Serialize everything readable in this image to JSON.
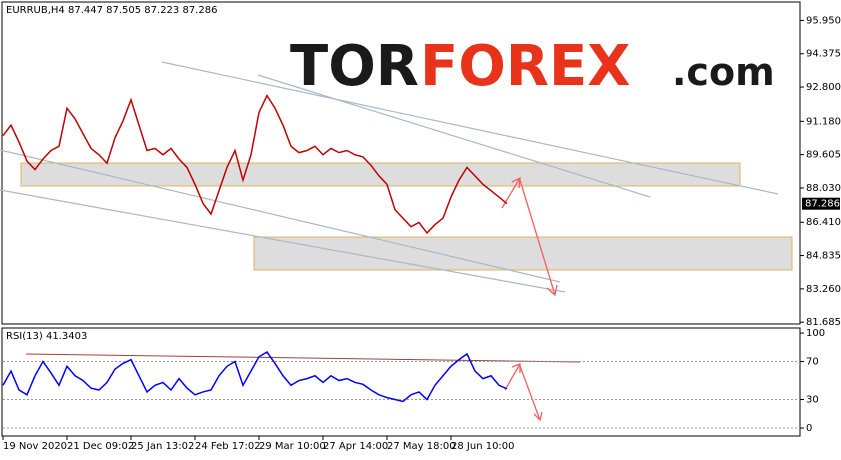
{
  "chart_data": [
    {
      "type": "line",
      "title": "EURRUB,H4  87.447 87.505 87.223 87.286",
      "categories": [
        "19 Nov 2020",
        null,
        null,
        null,
        null,
        null,
        null,
        null,
        "21 Dec 09:02",
        null,
        null,
        null,
        null,
        null,
        null,
        null,
        "25 Jan 13:02",
        null,
        null,
        null,
        null,
        null,
        null,
        null,
        "24 Feb 17:02",
        null,
        null,
        null,
        null,
        null,
        null,
        null,
        "29 Mar 10:00",
        null,
        null,
        null,
        null,
        null,
        null,
        null,
        "27 Apr 14:00",
        null,
        null,
        null,
        null,
        null,
        null,
        null,
        "27 May 18:00",
        null,
        null,
        null,
        null,
        null,
        null,
        null,
        "28 Jun 10:00",
        null,
        null,
        null,
        null,
        null,
        null,
        null
      ],
      "series": [
        {
          "color": "#c00000",
          "values": [
            90.5,
            91.0,
            90.2,
            89.3,
            88.9,
            89.4,
            89.8,
            90.0,
            91.8,
            91.3,
            90.6,
            89.9,
            89.6,
            89.2,
            90.4,
            91.2,
            92.2,
            91.0,
            89.8,
            89.9,
            89.6,
            89.9,
            89.4,
            89.0,
            88.2,
            87.3,
            86.8,
            87.9,
            89.0,
            89.8,
            88.4,
            89.6,
            91.6,
            92.4,
            91.8,
            91.0,
            90.0,
            89.7,
            89.8,
            90.0,
            89.6,
            89.9,
            89.7,
            89.8,
            89.6,
            89.5,
            89.1,
            88.6,
            88.2,
            87.0,
            86.6,
            86.2,
            86.4,
            85.9,
            86.3,
            86.6,
            87.6,
            88.4,
            89.0,
            88.6,
            88.2,
            87.9,
            87.6,
            87.286
          ]
        }
      ],
      "current_price": 87.286,
      "ylim": [
        81.6,
        96.82
      ],
      "yticks": [
        {
          "value": 95.95,
          "label": "95.950"
        },
        {
          "value": 94.375,
          "label": "94.375"
        },
        {
          "value": 92.8,
          "label": "92.800"
        },
        {
          "value": 91.18,
          "label": "91.180"
        },
        {
          "value": 89.605,
          "label": "89.605"
        },
        {
          "value": 88.03,
          "label": "88.030"
        },
        {
          "value": 86.41,
          "label": "86.410"
        },
        {
          "value": 84.835,
          "label": "84.835"
        },
        {
          "value": 83.26,
          "label": "83.260"
        },
        {
          "value": 81.685,
          "label": "81.685"
        }
      ],
      "grid": false
    },
    {
      "type": "line",
      "title": "RSI(13) 41.3403",
      "series": [
        {
          "color": "#0000ff",
          "values": [
            45,
            60,
            40,
            35,
            55,
            70,
            58,
            45,
            65,
            55,
            50,
            42,
            40,
            48,
            62,
            68,
            72,
            55,
            38,
            45,
            48,
            40,
            52,
            42,
            35,
            38,
            40,
            55,
            65,
            70,
            45,
            60,
            75,
            80,
            68,
            55,
            45,
            50,
            52,
            55,
            48,
            55,
            50,
            52,
            48,
            46,
            40,
            35,
            32,
            30,
            28,
            35,
            38,
            30,
            45,
            55,
            65,
            72,
            78,
            60,
            52,
            55,
            45,
            41.3403
          ]
        }
      ],
      "ylim": [
        -8.4,
        105.3
      ],
      "yticks": [
        100,
        70,
        30,
        0
      ],
      "grid": true
    }
  ],
  "logo": {
    "left": "TOR",
    "middle": "FOREX",
    "right": ".com"
  }
}
